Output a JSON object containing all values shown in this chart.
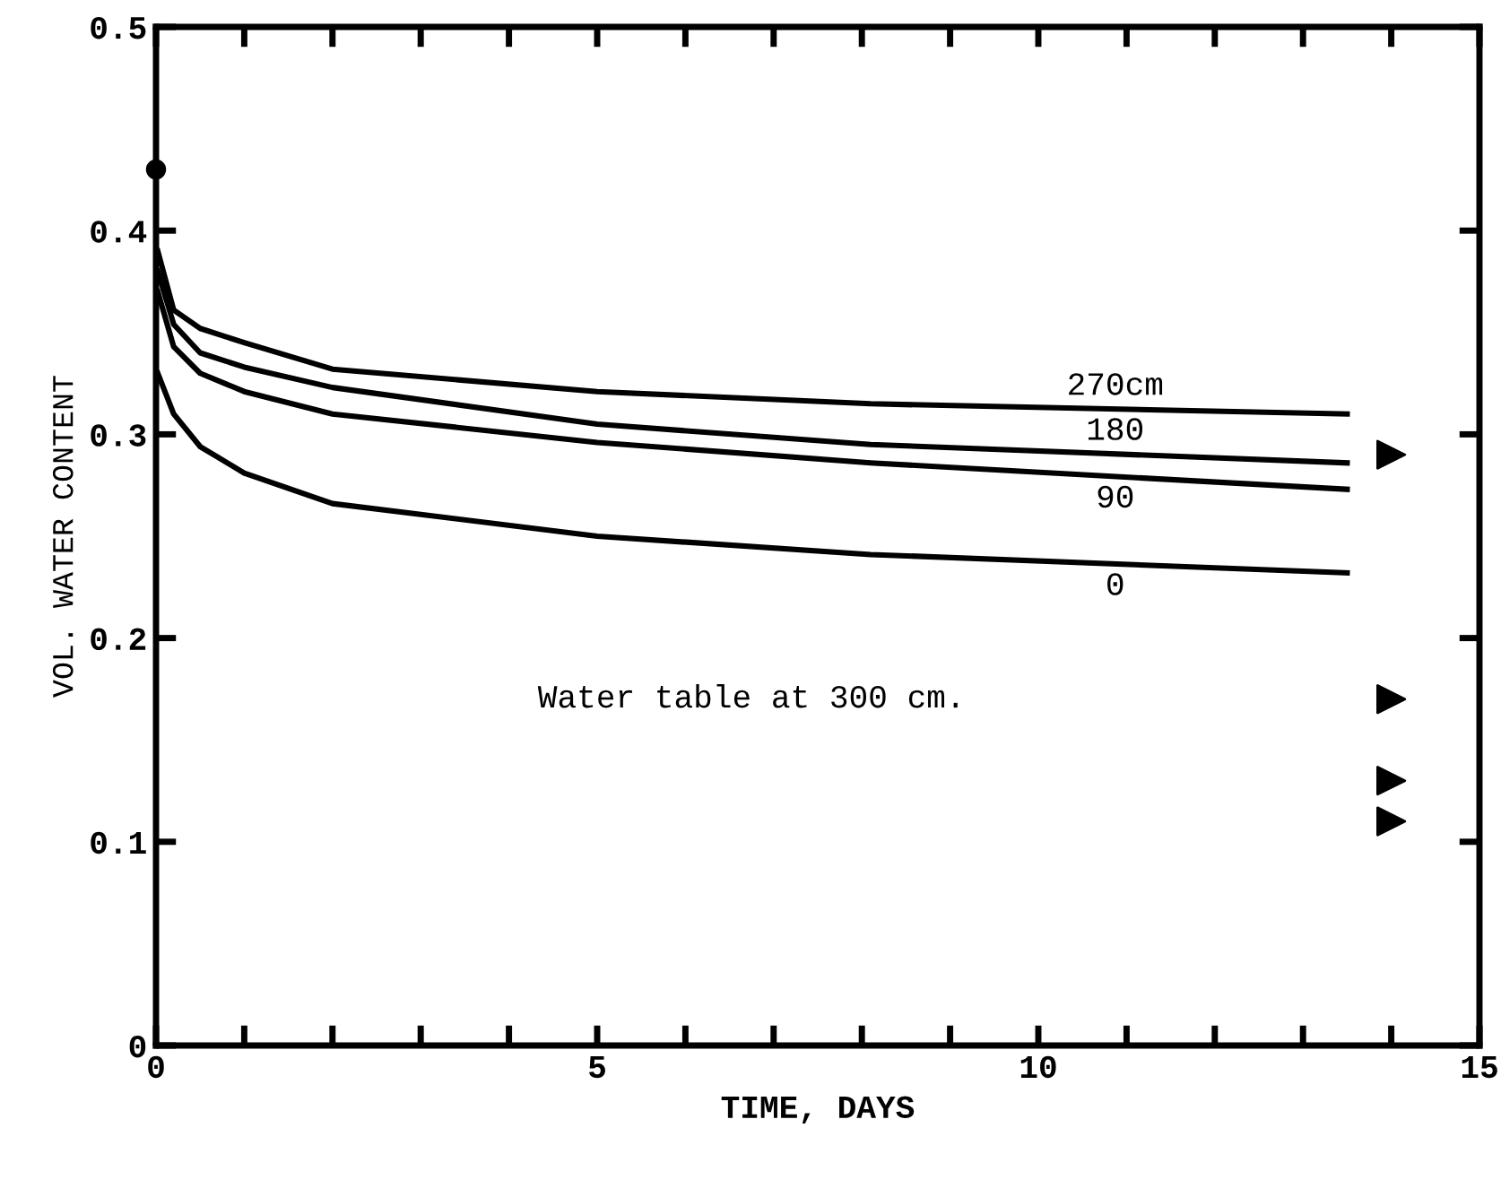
{
  "chart_data": {
    "type": "line",
    "xlabel": "TIME, DAYS",
    "ylabel": "VOL. WATER CONTENT",
    "xlim": [
      0,
      15
    ],
    "ylim": [
      0,
      0.5
    ],
    "xticks": [
      0,
      {
        "value": 1,
        "label": null
      },
      {
        "value": 2,
        "label": null
      },
      {
        "value": 3,
        "label": null
      },
      {
        "value": 4,
        "label": null
      },
      5,
      {
        "value": 6,
        "label": null
      },
      {
        "value": 7,
        "label": null
      },
      {
        "value": 8,
        "label": null
      },
      {
        "value": 9,
        "label": null
      },
      10,
      {
        "value": 11,
        "label": null
      },
      {
        "value": 12,
        "label": null
      },
      {
        "value": 13,
        "label": null
      },
      {
        "value": 14,
        "label": null
      },
      15
    ],
    "yticks": [
      0,
      0.1,
      0.2,
      0.3,
      0.4,
      0.5
    ],
    "grid": false,
    "legend": false,
    "marker": "none",
    "line_style": "solid",
    "series": [
      {
        "name": "270cm",
        "color": "#000000",
        "x": [
          0.02,
          0.2,
          0.5,
          1,
          2,
          5,
          8.1,
          13.5
        ],
        "values": [
          0.39,
          0.361,
          0.352,
          0.345,
          0.332,
          0.321,
          0.315,
          0.31
        ]
      },
      {
        "name": "180",
        "color": "#000000",
        "x": [
          0.02,
          0.2,
          0.5,
          1,
          2,
          5,
          8.1,
          13.5
        ],
        "values": [
          0.38,
          0.354,
          0.34,
          0.333,
          0.323,
          0.305,
          0.295,
          0.286
        ]
      },
      {
        "name": "90",
        "color": "#000000",
        "x": [
          0.02,
          0.2,
          0.5,
          1,
          2,
          5,
          8.1,
          13.5
        ],
        "values": [
          0.37,
          0.343,
          0.33,
          0.321,
          0.31,
          0.296,
          0.286,
          0.273
        ]
      },
      {
        "name": "0",
        "color": "#000000",
        "x": [
          0.02,
          0.2,
          0.5,
          1,
          2,
          5,
          8.1,
          13.5
        ],
        "values": [
          0.33,
          0.31,
          0.294,
          0.281,
          0.266,
          0.25,
          0.241,
          0.232
        ]
      },
      {
        "type": "scatter",
        "marker": "circle",
        "color": "#000000",
        "x": [
          0
        ],
        "values": [
          0.43
        ]
      },
      {
        "type": "scatter",
        "marker": "triangle",
        "color": "#000000",
        "x": [
          14.0,
          14.0,
          14.0,
          14.0
        ],
        "values": [
          0.29,
          0.17,
          0.13,
          0.11
        ]
      }
    ],
    "annotations": [
      "Water table at 300 cm."
    ]
  }
}
